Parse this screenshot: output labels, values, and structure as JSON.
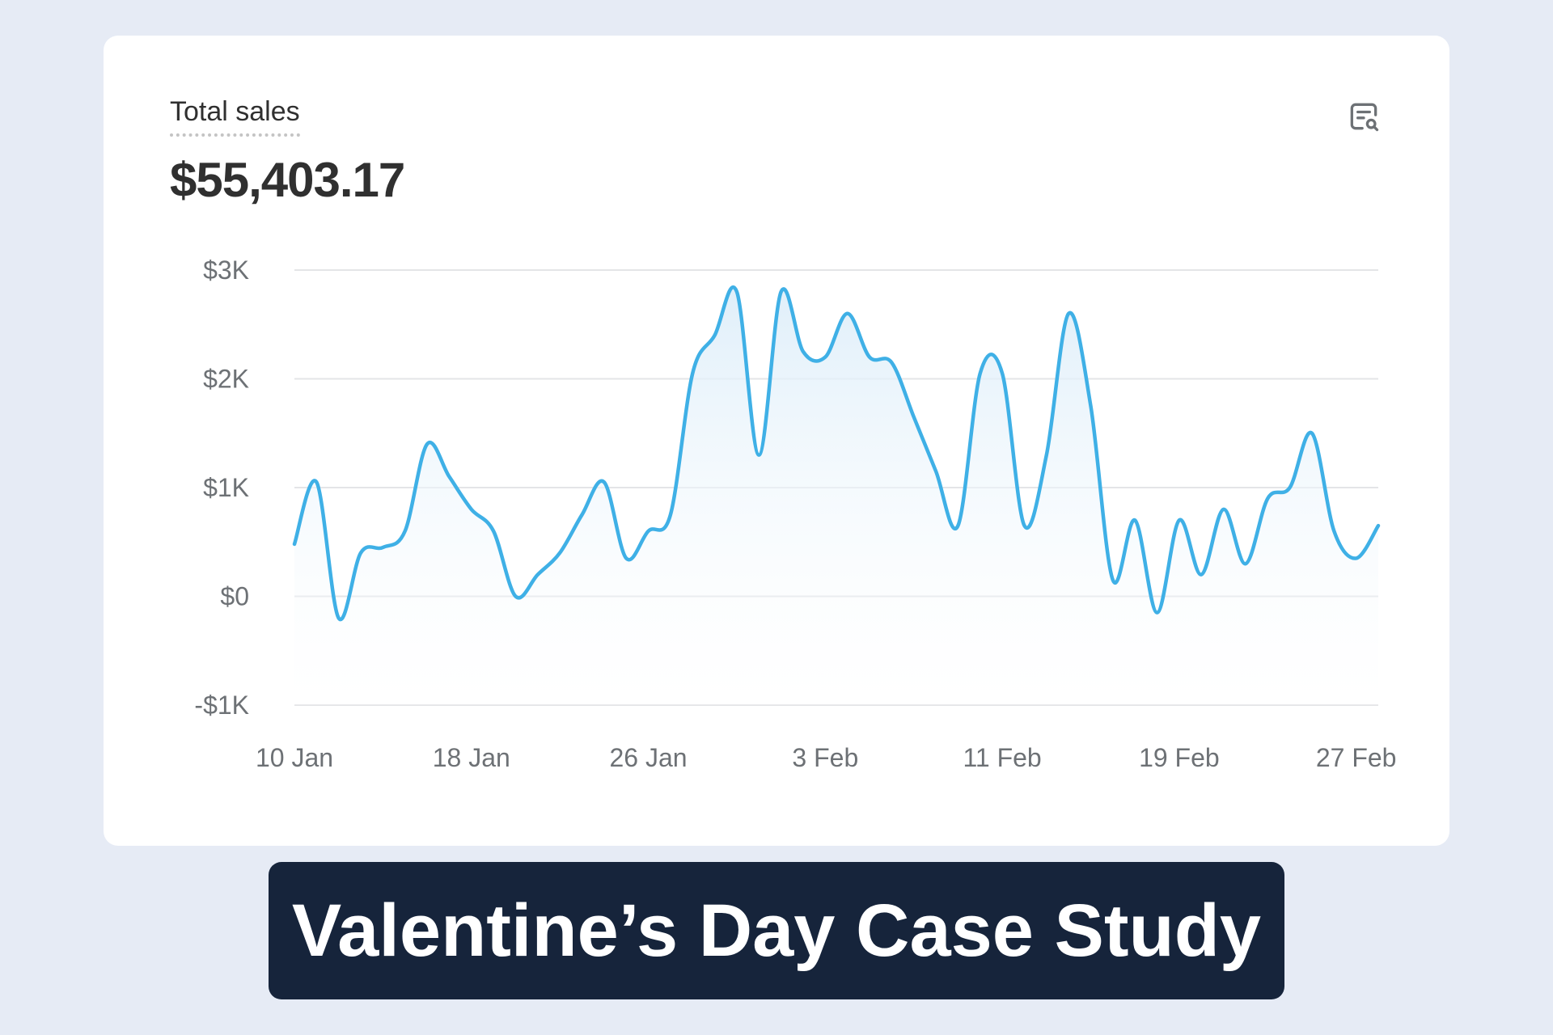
{
  "card": {
    "metric_label": "Total sales",
    "metric_value": "$55,403.17",
    "explore_icon": "report-search-icon"
  },
  "banner": {
    "title": "Valentine’s Day Case Study"
  },
  "colors": {
    "page_bg": "#e6ebf5",
    "card_bg": "#ffffff",
    "line": "#3fb0e6",
    "area": "#eaf5fc",
    "grid": "#e4e5e7",
    "banner_bg": "#16243b",
    "banner_text": "#ffffff"
  },
  "chart_data": {
    "type": "area",
    "title": "",
    "xlabel": "",
    "ylabel": "",
    "ylim": [
      -1000,
      3000
    ],
    "grid": true,
    "legend": "none",
    "y_ticks": [
      {
        "value": 3000,
        "label": "$3K"
      },
      {
        "value": 2000,
        "label": "$2K"
      },
      {
        "value": 1000,
        "label": "$1K"
      },
      {
        "value": 0,
        "label": "$0"
      },
      {
        "value": -1000,
        "label": "-$1K"
      }
    ],
    "x_ticks": [
      {
        "index": 0,
        "label": "10 Jan"
      },
      {
        "index": 8,
        "label": "18 Jan"
      },
      {
        "index": 16,
        "label": "26 Jan"
      },
      {
        "index": 24,
        "label": "3 Feb"
      },
      {
        "index": 32,
        "label": "11 Feb"
      },
      {
        "index": 40,
        "label": "19 Feb"
      },
      {
        "index": 48,
        "label": "27 Feb"
      }
    ],
    "series": [
      {
        "values": [
          {
            "x": "10 Jan",
            "y": 480
          },
          {
            "x": "11 Jan",
            "y": 1050
          },
          {
            "x": "12 Jan",
            "y": -200
          },
          {
            "x": "13 Jan",
            "y": 400
          },
          {
            "x": "14 Jan",
            "y": 450
          },
          {
            "x": "15 Jan",
            "y": 600
          },
          {
            "x": "16 Jan",
            "y": 1400
          },
          {
            "x": "17 Jan",
            "y": 1100
          },
          {
            "x": "18 Jan",
            "y": 800
          },
          {
            "x": "19 Jan",
            "y": 600
          },
          {
            "x": "20 Jan",
            "y": 0
          },
          {
            "x": "21 Jan",
            "y": 200
          },
          {
            "x": "22 Jan",
            "y": 400
          },
          {
            "x": "23 Jan",
            "y": 750
          },
          {
            "x": "24 Jan",
            "y": 1050
          },
          {
            "x": "25 Jan",
            "y": 350
          },
          {
            "x": "26 Jan",
            "y": 600
          },
          {
            "x": "27 Jan",
            "y": 750
          },
          {
            "x": "28 Jan",
            "y": 2050
          },
          {
            "x": "29 Jan",
            "y": 2400
          },
          {
            "x": "30 Jan",
            "y": 2800
          },
          {
            "x": "31 Jan",
            "y": 1300
          },
          {
            "x": "1 Feb",
            "y": 2800
          },
          {
            "x": "2 Feb",
            "y": 2250
          },
          {
            "x": "3 Feb",
            "y": 2200
          },
          {
            "x": "4 Feb",
            "y": 2600
          },
          {
            "x": "5 Feb",
            "y": 2200
          },
          {
            "x": "6 Feb",
            "y": 2150
          },
          {
            "x": "7 Feb",
            "y": 1650
          },
          {
            "x": "8 Feb",
            "y": 1150
          },
          {
            "x": "9 Feb",
            "y": 650
          },
          {
            "x": "10 Feb",
            "y": 2050
          },
          {
            "x": "11 Feb",
            "y": 2050
          },
          {
            "x": "12 Feb",
            "y": 650
          },
          {
            "x": "13 Feb",
            "y": 1300
          },
          {
            "x": "14 Feb",
            "y": 2600
          },
          {
            "x": "15 Feb",
            "y": 1750
          },
          {
            "x": "16 Feb",
            "y": 150
          },
          {
            "x": "17 Feb",
            "y": 700
          },
          {
            "x": "18 Feb",
            "y": -150
          },
          {
            "x": "19 Feb",
            "y": 700
          },
          {
            "x": "20 Feb",
            "y": 200
          },
          {
            "x": "21 Feb",
            "y": 800
          },
          {
            "x": "22 Feb",
            "y": 300
          },
          {
            "x": "23 Feb",
            "y": 900
          },
          {
            "x": "24 Feb",
            "y": 1000
          },
          {
            "x": "25 Feb",
            "y": 1500
          },
          {
            "x": "26 Feb",
            "y": 600
          },
          {
            "x": "27 Feb",
            "y": 350
          },
          {
            "x": "28 Feb",
            "y": 650
          }
        ]
      }
    ]
  }
}
